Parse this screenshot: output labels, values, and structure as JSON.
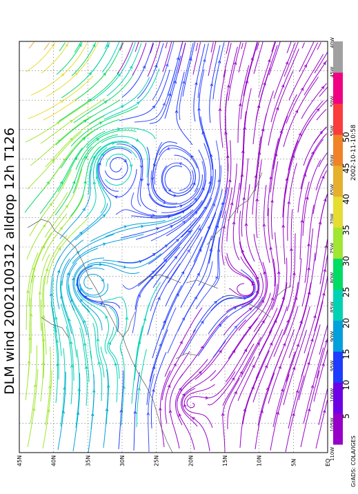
{
  "title": "DLM wind 2002100312 alldrop 12h T126",
  "timestamp": "2002-10-11-10:58",
  "credit": "GrADS: COLA/IGES",
  "lat_labels": [
    "45N",
    "40N",
    "35N",
    "30N",
    "25N",
    "20N",
    "15N",
    "10N",
    "5N",
    "EQ"
  ],
  "lon_labels": [
    "110W",
    "105W",
    "100W",
    "95W",
    "90W",
    "85W",
    "80W",
    "75W",
    "70W",
    "65W",
    "60W",
    "55W",
    "50W",
    "45W",
    "40W"
  ],
  "colorbar": {
    "tick_labels": [
      "5",
      "10",
      "15",
      "20",
      "25",
      "30",
      "35",
      "40",
      "45",
      "50"
    ],
    "colors": [
      "#9600c8",
      "#6e00e6",
      "#1e3cff",
      "#00a0dc",
      "#00d2b4",
      "#00dc64",
      "#a0e632",
      "#e6dc32",
      "#e6af2d",
      "#f08228",
      "#fa3c3c",
      "#f00082",
      "#a0a0a0"
    ]
  }
}
